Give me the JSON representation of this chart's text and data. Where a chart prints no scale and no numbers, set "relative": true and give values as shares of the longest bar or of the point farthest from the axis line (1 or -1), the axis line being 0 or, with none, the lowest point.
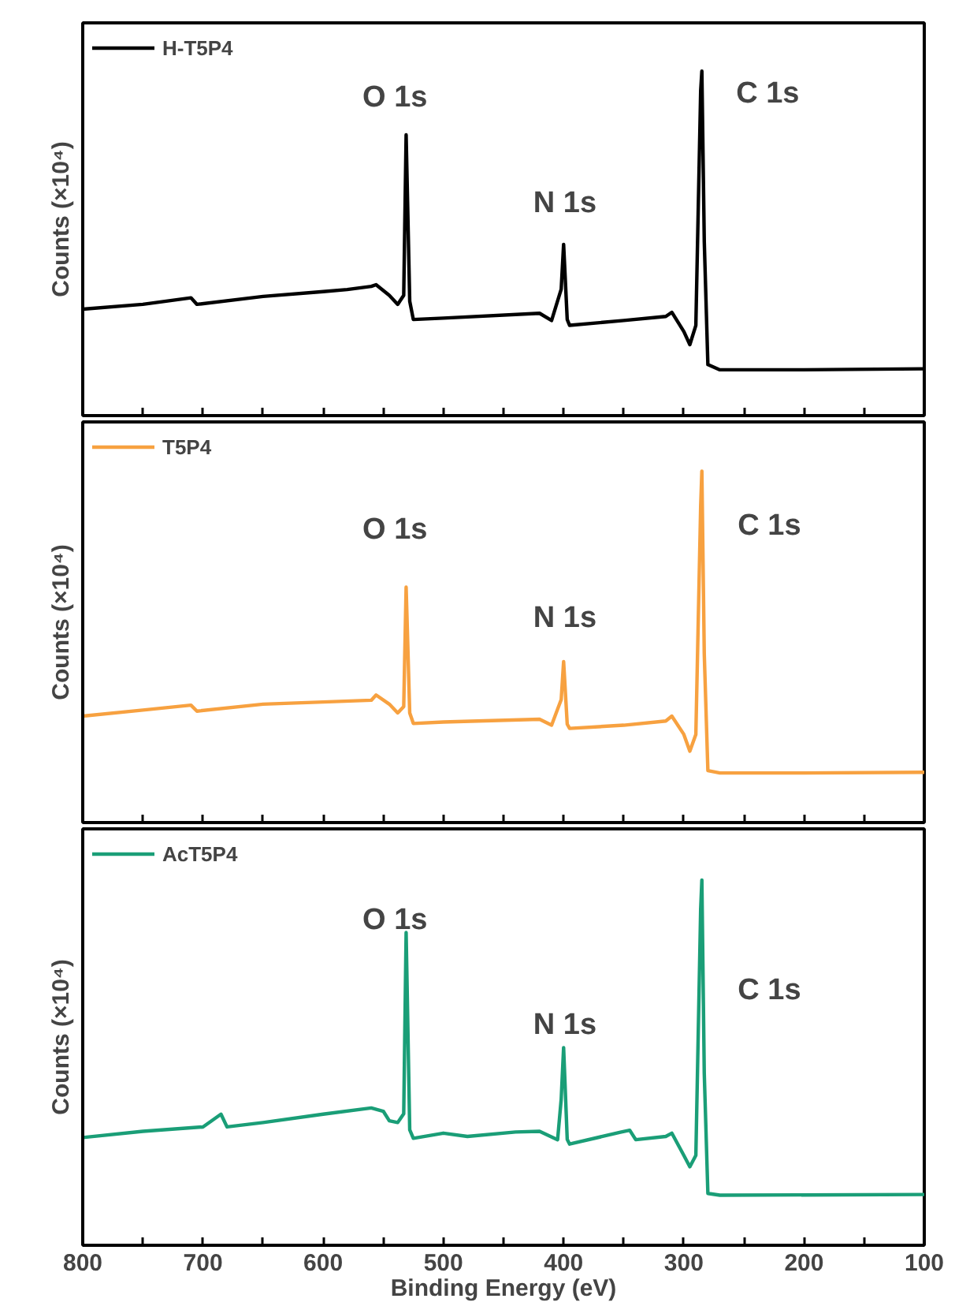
{
  "chart_data": [
    {
      "type": "line",
      "relative": true,
      "ylabel": "Counts (×10⁴)",
      "xlim": [
        800,
        100
      ],
      "xticks": [
        {
          "value": 800,
          "label": null
        },
        {
          "value": 750,
          "label": null
        },
        {
          "value": 700,
          "label": null
        },
        {
          "value": 650,
          "label": null
        },
        {
          "value": 600,
          "label": null
        },
        {
          "value": 550,
          "label": null
        },
        {
          "value": 500,
          "label": null
        },
        {
          "value": 450,
          "label": null
        },
        {
          "value": 400,
          "label": null
        },
        {
          "value": 350,
          "label": null
        },
        {
          "value": 300,
          "label": null
        },
        {
          "value": 250,
          "label": null
        },
        {
          "value": 200,
          "label": null
        },
        {
          "value": 150,
          "label": null
        },
        {
          "value": 100,
          "label": null
        }
      ],
      "tick_labels": false,
      "legend": "top left",
      "grid": false,
      "x": [
        800,
        750,
        710,
        705,
        650,
        600,
        580,
        560,
        556,
        545,
        538,
        533,
        531,
        528,
        525,
        500,
        420,
        410,
        402,
        400,
        397,
        395,
        350,
        315,
        310,
        300,
        295,
        290,
        286,
        285,
        283,
        280,
        270,
        200,
        100
      ],
      "series": [
        {
          "name": "H-T5P4",
          "color": "#000000",
          "values": [
            0.309,
            0.323,
            0.342,
            0.323,
            0.346,
            0.36,
            0.366,
            0.375,
            0.38,
            0.349,
            0.323,
            0.349,
            0.815,
            0.332,
            0.279,
            0.283,
            0.297,
            0.276,
            0.367,
            0.497,
            0.279,
            0.262,
            0.276,
            0.288,
            0.3,
            0.244,
            0.206,
            0.262,
            0.942,
            1.0,
            0.506,
            0.148,
            0.133,
            0.133,
            0.136
          ]
        }
      ],
      "annotations": [
        "O 1s",
        "N 1s",
        "C 1s"
      ]
    },
    {
      "type": "line",
      "relative": true,
      "ylabel": "Counts (×10⁴)",
      "xlim": [
        800,
        100
      ],
      "xticks": [
        {
          "value": 800,
          "label": null
        },
        {
          "value": 750,
          "label": null
        },
        {
          "value": 700,
          "label": null
        },
        {
          "value": 650,
          "label": null
        },
        {
          "value": 600,
          "label": null
        },
        {
          "value": 550,
          "label": null
        },
        {
          "value": 500,
          "label": null
        },
        {
          "value": 450,
          "label": null
        },
        {
          "value": 400,
          "label": null
        },
        {
          "value": 350,
          "label": null
        },
        {
          "value": 300,
          "label": null
        },
        {
          "value": 250,
          "label": null
        },
        {
          "value": 200,
          "label": null
        },
        {
          "value": 150,
          "label": null
        },
        {
          "value": 100,
          "label": null
        }
      ],
      "tick_labels": false,
      "legend": "top left",
      "grid": false,
      "x": [
        800,
        750,
        710,
        705,
        650,
        600,
        560,
        556,
        545,
        538,
        533,
        531,
        528,
        525,
        500,
        420,
        410,
        402,
        400,
        397,
        395,
        350,
        315,
        310,
        300,
        295,
        290,
        286,
        285,
        283,
        280,
        270,
        200,
        100
      ],
      "series": [
        {
          "name": "T5P4",
          "color": "#f7a140",
          "values": [
            0.303,
            0.32,
            0.334,
            0.317,
            0.337,
            0.343,
            0.348,
            0.363,
            0.337,
            0.312,
            0.33,
            0.67,
            0.312,
            0.282,
            0.286,
            0.294,
            0.277,
            0.35,
            0.458,
            0.28,
            0.268,
            0.277,
            0.289,
            0.303,
            0.251,
            0.203,
            0.251,
            0.9,
            1.0,
            0.48,
            0.148,
            0.141,
            0.141,
            0.143
          ]
        }
      ],
      "annotations": [
        "O 1s",
        "N 1s",
        "C 1s"
      ]
    },
    {
      "type": "line",
      "relative": true,
      "ylabel": "Counts (×10⁴)",
      "xlabel": "Binding Energy (eV)",
      "xlim": [
        800,
        100
      ],
      "xticks": [
        800,
        {
          "value": 750,
          "label": null
        },
        700,
        {
          "value": 650,
          "label": null
        },
        600,
        {
          "value": 550,
          "label": null
        },
        500,
        {
          "value": 450,
          "label": null
        },
        400,
        {
          "value": 350,
          "label": null
        },
        300,
        {
          "value": 250,
          "label": null
        },
        200,
        {
          "value": 150,
          "label": null
        },
        100
      ],
      "tick_labels": "x",
      "legend": "top left",
      "grid": false,
      "x": [
        800,
        750,
        700,
        685,
        680,
        650,
        600,
        560,
        550,
        545,
        538,
        533,
        531,
        528,
        525,
        500,
        480,
        440,
        420,
        405,
        402,
        400,
        397,
        395,
        352,
        345,
        340,
        315,
        310,
        300,
        295,
        290,
        286,
        285,
        283,
        280,
        270,
        100
      ],
      "series": [
        {
          "name": "AcT5P4",
          "color": "#1a9e77",
          "values": [
            0.295,
            0.312,
            0.324,
            0.359,
            0.324,
            0.336,
            0.359,
            0.376,
            0.367,
            0.341,
            0.336,
            0.36,
            0.856,
            0.316,
            0.293,
            0.307,
            0.298,
            0.31,
            0.312,
            0.289,
            0.4,
            0.541,
            0.29,
            0.277,
            0.31,
            0.315,
            0.289,
            0.298,
            0.307,
            0.246,
            0.215,
            0.246,
            0.92,
            1.0,
            0.47,
            0.142,
            0.137,
            0.139
          ]
        }
      ],
      "annotations": [
        "O 1s",
        "N 1s",
        "C 1s"
      ]
    }
  ]
}
